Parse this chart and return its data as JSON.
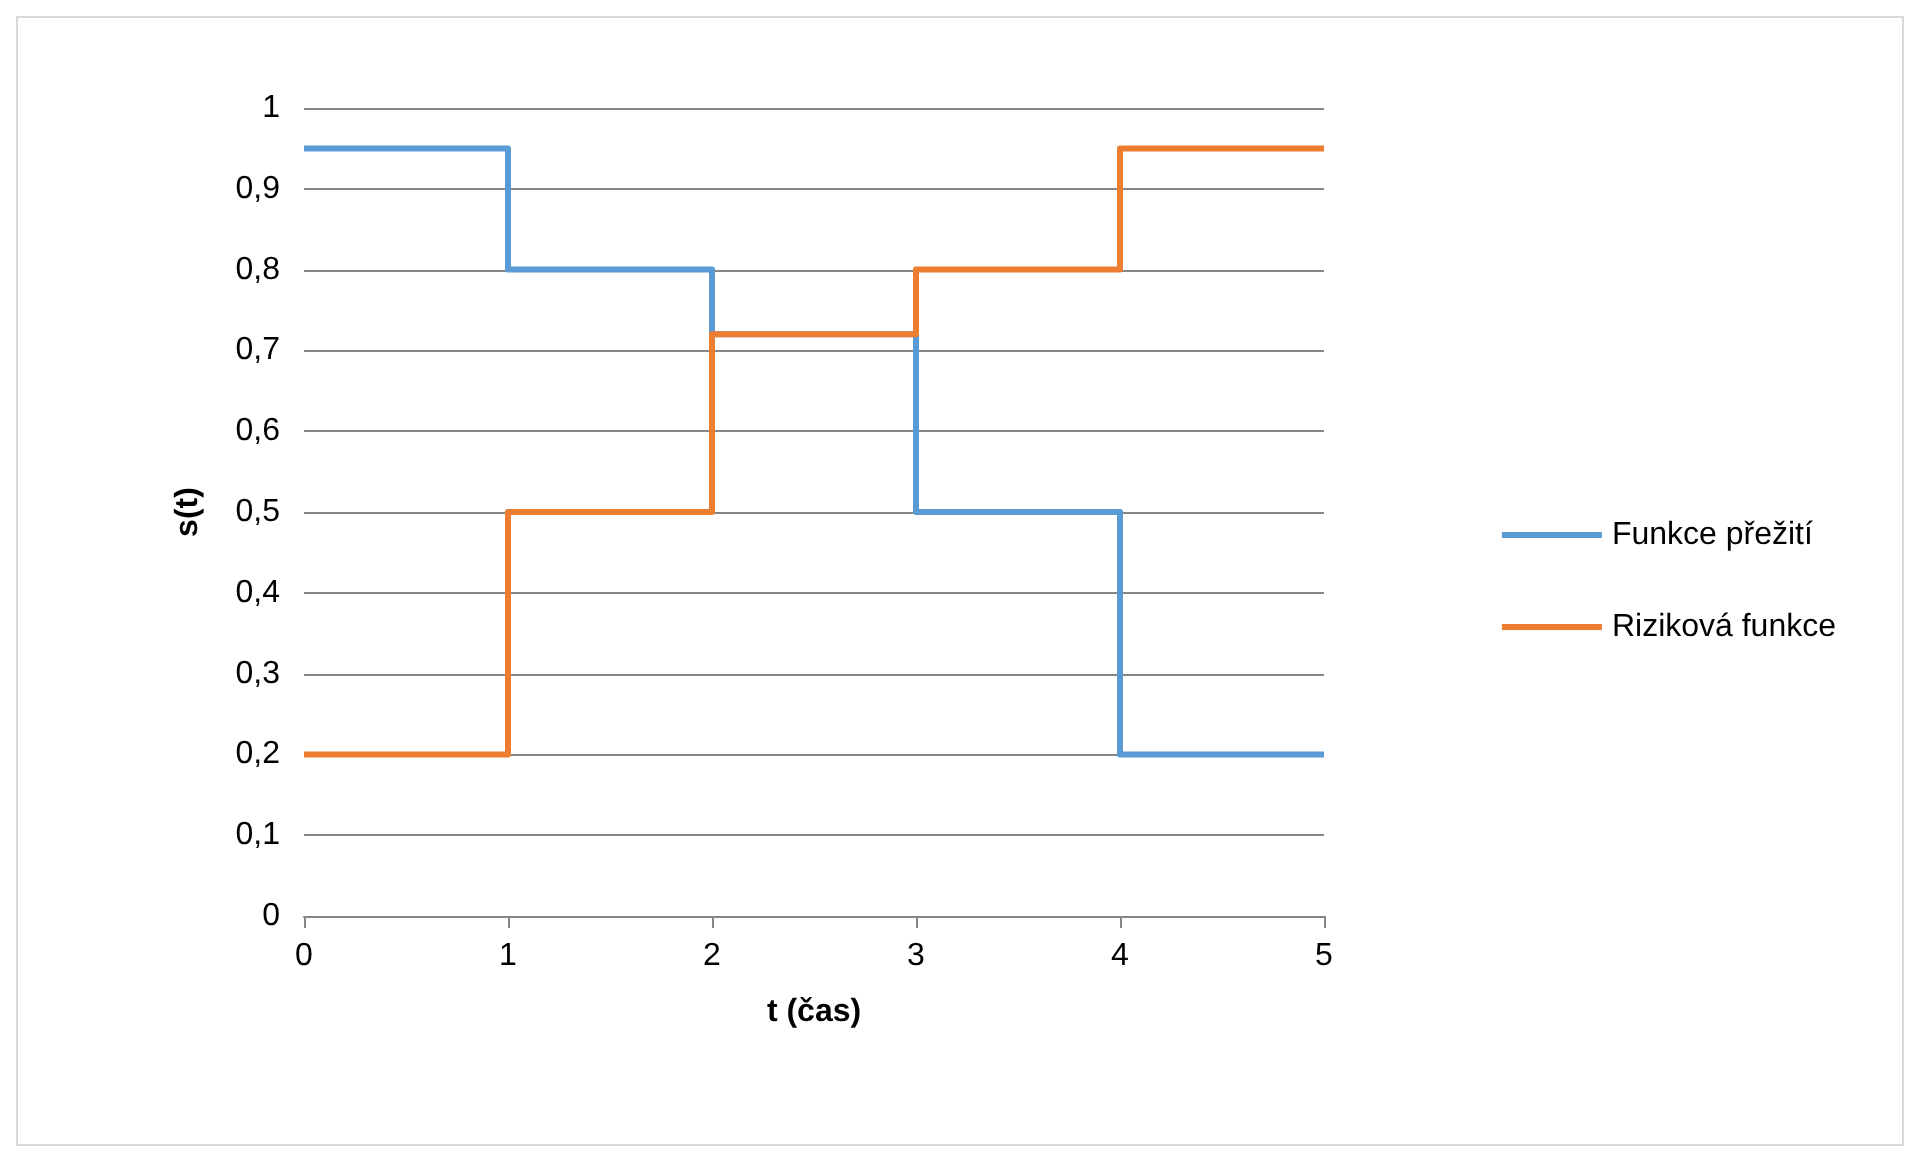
{
  "chart_data": {
    "type": "step",
    "xlabel": "t (čas)",
    "ylabel": "s(t)",
    "x": [
      0,
      1,
      2,
      3,
      4,
      5
    ],
    "series": [
      {
        "name": "Funkce přežití",
        "color": "#5b9bd5",
        "values": [
          0.95,
          0.8,
          0.72,
          0.5,
          0.2,
          0.2
        ]
      },
      {
        "name": "Riziková funkce",
        "color": "#ed7d31",
        "values": [
          0.2,
          0.5,
          0.72,
          0.8,
          0.95,
          0.95
        ]
      }
    ],
    "xlim": [
      0,
      5
    ],
    "xticks": [
      0,
      1,
      2,
      3,
      4,
      5
    ],
    "ylim": [
      0,
      1
    ],
    "yticks": [
      0,
      {
        "value": 0.1,
        "label": "0,1"
      },
      {
        "value": 0.2,
        "label": "0,2"
      },
      {
        "value": 0.3,
        "label": "0,3"
      },
      {
        "value": 0.4,
        "label": "0,4"
      },
      {
        "value": 0.5,
        "label": "0,5"
      },
      {
        "value": 0.6,
        "label": "0,6"
      },
      {
        "value": 0.7,
        "label": "0,7"
      },
      {
        "value": 0.8,
        "label": "0,8"
      },
      {
        "value": 0.9,
        "label": "0,9"
      },
      1
    ],
    "grid": "y",
    "legend": "right",
    "marker": "none",
    "line_style": "solid"
  }
}
